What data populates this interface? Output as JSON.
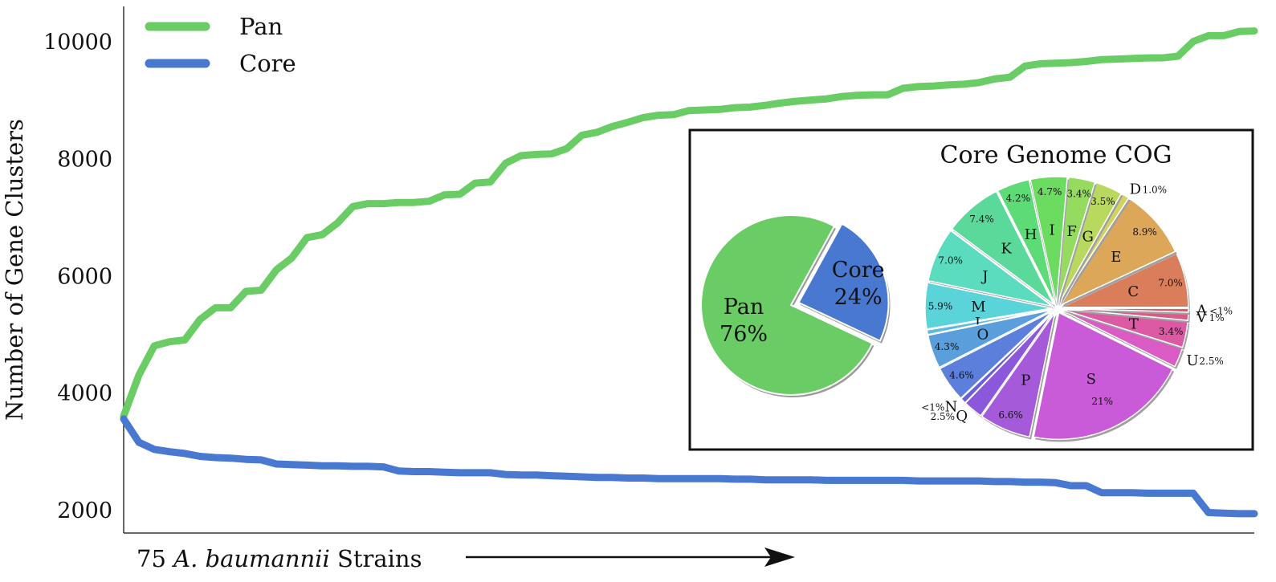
{
  "chart_data": [
    {
      "type": "line",
      "ylabel": "Number of Gene Clusters",
      "xlabel_prefix": "75 ",
      "xlabel_italic": "A. baumannii",
      "xlabel_suffix": " Strains",
      "ylim": [
        1600,
        10600
      ],
      "yticks": [
        2000,
        4000,
        6000,
        8000,
        10000
      ],
      "ytick_labels": [
        "2000",
        "4000",
        "6000",
        "8000",
        "10000"
      ],
      "x": [
        1,
        2,
        3,
        4,
        5,
        6,
        7,
        8,
        9,
        10,
        11,
        12,
        13,
        14,
        15,
        16,
        17,
        18,
        19,
        20,
        21,
        22,
        23,
        24,
        25,
        26,
        27,
        28,
        29,
        30,
        31,
        32,
        33,
        34,
        35,
        36,
        37,
        38,
        39,
        40,
        41,
        42,
        43,
        44,
        45,
        46,
        47,
        48,
        49,
        50,
        51,
        52,
        53,
        54,
        55,
        56,
        57,
        58,
        59,
        60,
        61,
        62,
        63,
        64,
        65,
        66,
        67,
        68,
        69,
        70,
        71,
        72,
        73,
        74,
        75
      ],
      "series": [
        {
          "name": "Pan",
          "color": "#6acc64",
          "values": [
            3600,
            4300,
            4800,
            4870,
            4900,
            5250,
            5450,
            5450,
            5730,
            5750,
            6100,
            6300,
            6650,
            6700,
            6900,
            7180,
            7230,
            7230,
            7250,
            7250,
            7270,
            7380,
            7390,
            7580,
            7600,
            7920,
            8050,
            8070,
            8080,
            8170,
            8400,
            8450,
            8550,
            8620,
            8700,
            8740,
            8750,
            8820,
            8830,
            8840,
            8870,
            8880,
            8910,
            8950,
            8980,
            9000,
            9020,
            9060,
            9080,
            9090,
            9090,
            9200,
            9230,
            9240,
            9260,
            9270,
            9300,
            9360,
            9390,
            9580,
            9620,
            9630,
            9640,
            9660,
            9690,
            9700,
            9710,
            9720,
            9720,
            9750,
            10000,
            10100,
            10100,
            10170,
            10180
          ]
        },
        {
          "name": "Core",
          "color": "#4878d0",
          "values": [
            3550,
            3150,
            3030,
            2990,
            2960,
            2910,
            2890,
            2880,
            2860,
            2850,
            2780,
            2770,
            2760,
            2750,
            2750,
            2740,
            2740,
            2730,
            2660,
            2650,
            2650,
            2640,
            2630,
            2630,
            2630,
            2600,
            2590,
            2590,
            2580,
            2570,
            2560,
            2550,
            2550,
            2540,
            2540,
            2530,
            2530,
            2530,
            2530,
            2530,
            2520,
            2520,
            2510,
            2510,
            2510,
            2510,
            2500,
            2500,
            2500,
            2500,
            2500,
            2500,
            2490,
            2490,
            2490,
            2490,
            2490,
            2480,
            2480,
            2470,
            2470,
            2460,
            2410,
            2410,
            2290,
            2290,
            2290,
            2280,
            2280,
            2280,
            2280,
            1950,
            1940,
            1930,
            1930
          ]
        }
      ],
      "grid": false,
      "legend": "top-left"
    },
    {
      "type": "pie",
      "panel_title": "",
      "categories": [
        "Pan",
        "Core"
      ],
      "values": [
        76,
        24
      ],
      "value_labels": [
        "76%",
        "24%"
      ],
      "colors": [
        "#6acc64",
        "#4878d0"
      ],
      "exploded": "Core"
    },
    {
      "type": "pie",
      "title": "Core Genome COG",
      "slices": [
        {
          "letter": "C",
          "pct": "7.0%",
          "value": 7.0,
          "color": "#d97d5a"
        },
        {
          "letter": "E",
          "pct": "8.9%",
          "value": 8.9,
          "color": "#dda75a"
        },
        {
          "letter": "D",
          "pct": "1.0%",
          "value": 1.0,
          "color": "#d1d45b"
        },
        {
          "letter": "G",
          "pct": "3.5%",
          "value": 3.5,
          "color": "#b8d95e"
        },
        {
          "letter": "F",
          "pct": "3.4%",
          "value": 3.4,
          "color": "#95db60"
        },
        {
          "letter": "I",
          "pct": "4.7%",
          "value": 4.7,
          "color": "#6bdc5f"
        },
        {
          "letter": "H",
          "pct": "4.2%",
          "value": 4.2,
          "color": "#5cdb77"
        },
        {
          "letter": "K",
          "pct": "7.4%",
          "value": 7.4,
          "color": "#5ad99a"
        },
        {
          "letter": "J",
          "pct": "7.0%",
          "value": 7.0,
          "color": "#5bdcbe"
        },
        {
          "letter": "M",
          "pct": "5.9%",
          "value": 5.9,
          "color": "#5ad4d9"
        },
        {
          "letter": "L",
          "pct": "",
          "value": 0.6,
          "color": "#5bbade"
        },
        {
          "letter": "O",
          "pct": "4.3%",
          "value": 4.3,
          "color": "#5b9edc"
        },
        {
          "letter": "",
          "pct": "4.6%",
          "value": 4.6,
          "color": "#5b7fdb"
        },
        {
          "letter": "N",
          "pct": "<1%",
          "value": 0.7,
          "color": "#6a5edb"
        },
        {
          "letter": "Q",
          "pct": "2.5%",
          "value": 2.5,
          "color": "#8b58dc"
        },
        {
          "letter": "P",
          "pct": "6.6%",
          "value": 6.6,
          "color": "#a45ad9"
        },
        {
          "letter": "S",
          "pct": "21%",
          "value": 21.0,
          "color": "#c95bd8"
        },
        {
          "letter": "U",
          "pct": "2.5%",
          "value": 2.5,
          "color": "#db5bc4"
        },
        {
          "letter": "T",
          "pct": "3.4%",
          "value": 3.4,
          "color": "#dc5aa3"
        },
        {
          "letter": "V",
          "pct": "1%",
          "value": 1.0,
          "color": "#db5a86"
        },
        {
          "letter": "A",
          "pct": "<1%",
          "value": 0.5,
          "color": "#d85d6e"
        }
      ]
    }
  ]
}
